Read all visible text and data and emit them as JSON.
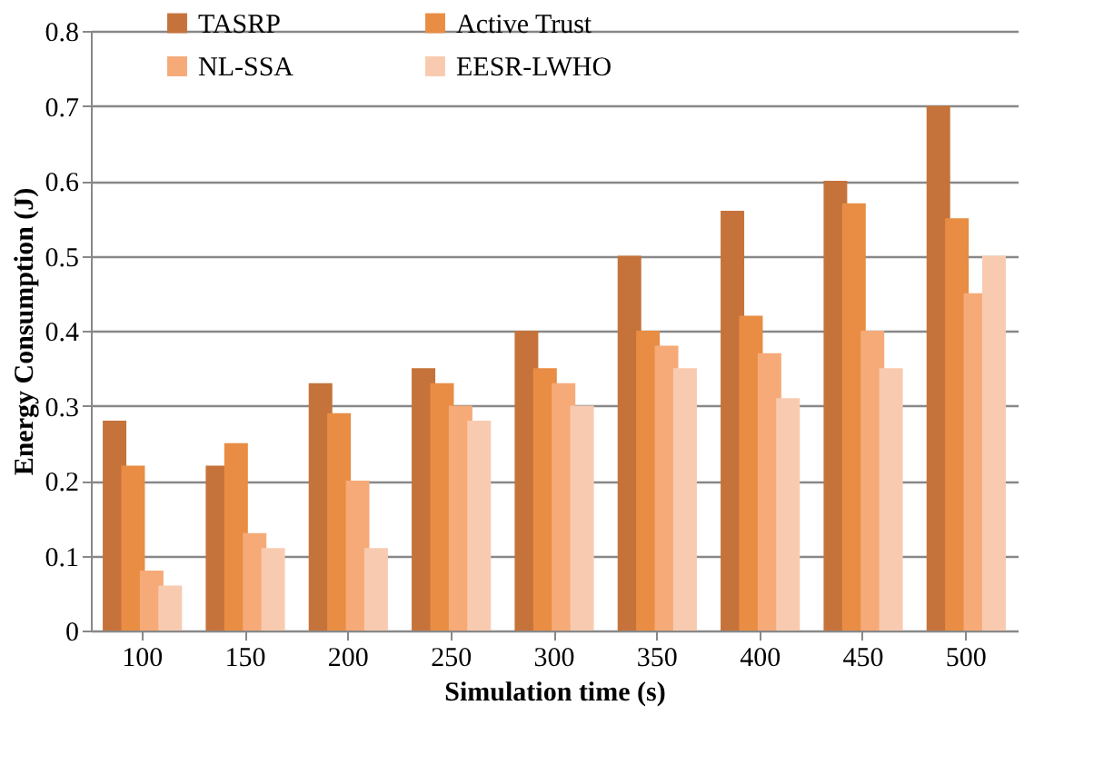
{
  "chart_data": {
    "type": "bar",
    "xlabel": "Simulation time (s)",
    "ylabel": "Energy Consumption (J)",
    "categories": [
      "100",
      "150",
      "200",
      "250",
      "300",
      "350",
      "400",
      "450",
      "500"
    ],
    "series": [
      {
        "name": "TASRP",
        "color": "#c5733a",
        "values": [
          0.28,
          0.22,
          0.33,
          0.35,
          0.4,
          0.5,
          0.56,
          0.6,
          0.7
        ]
      },
      {
        "name": "Active Trust",
        "color": "#e88d43",
        "values": [
          0.22,
          0.25,
          0.29,
          0.33,
          0.35,
          0.4,
          0.42,
          0.57,
          0.55
        ]
      },
      {
        "name": "NL-SSA",
        "color": "#f5aa78",
        "values": [
          0.08,
          0.13,
          0.2,
          0.3,
          0.33,
          0.38,
          0.37,
          0.4,
          0.45
        ]
      },
      {
        "name": "EESR-LWHO",
        "color": "#f8cbb0",
        "values": [
          0.06,
          0.11,
          0.11,
          0.28,
          0.3,
          0.35,
          0.31,
          0.35,
          0.5
        ]
      }
    ],
    "ylim": [
      0,
      0.8
    ],
    "yticks": [
      0,
      0.1,
      0.2,
      0.3,
      0.4,
      0.5,
      0.6,
      0.7,
      0.8
    ],
    "grid": "y",
    "legend": "top"
  }
}
